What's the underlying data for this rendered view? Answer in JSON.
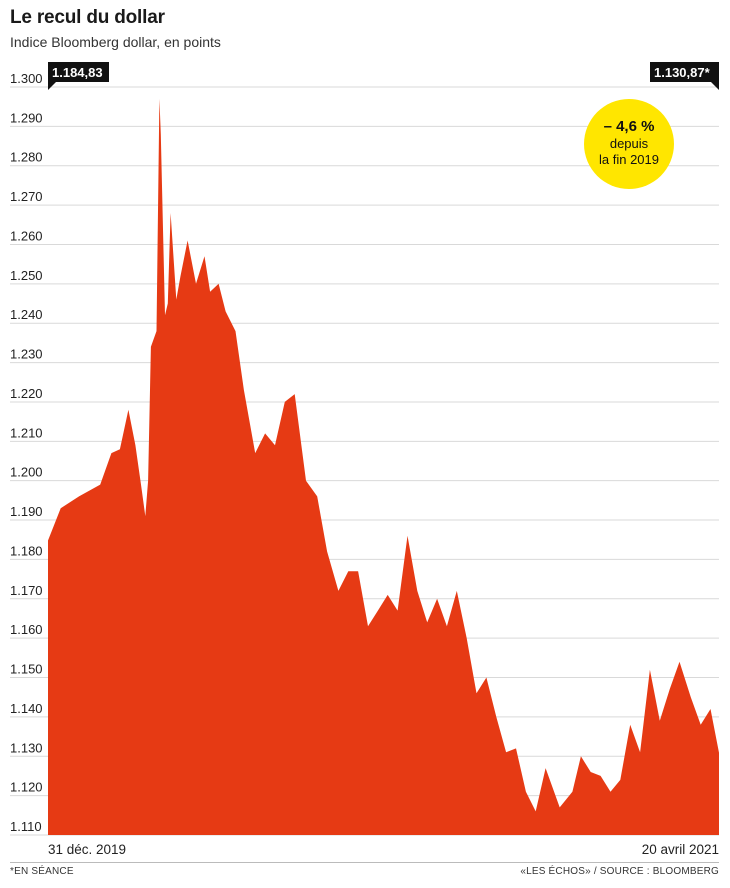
{
  "header": {
    "title": "Le recul du dollar",
    "subtitle": "Indice Bloomberg dollar, en points"
  },
  "callouts": {
    "start_value": "1.184,83",
    "end_value": "1.130,87*"
  },
  "badge": {
    "change": "– 4,6 %",
    "line1": "depuis",
    "line2": "la fin 2019",
    "color": "#ffe600"
  },
  "footer": {
    "footnote": "*EN SÉANCE",
    "source": "«LES ÉCHOS» / SOURCE : BLOOMBERG"
  },
  "colors": {
    "area": "#e63a14",
    "callout_bg": "#111111",
    "grid": "#d9d9d9"
  },
  "chart_data": {
    "type": "area",
    "ylim": [
      1110,
      1300
    ],
    "yticks": [
      1110,
      1120,
      1130,
      1140,
      1150,
      1160,
      1170,
      1180,
      1190,
      1200,
      1210,
      1220,
      1230,
      1240,
      1250,
      1260,
      1270,
      1280,
      1290,
      1300
    ],
    "ytick_labels": [
      "1.110",
      "1.120",
      "1.130",
      "1.140",
      "1.150",
      "1.160",
      "1.170",
      "1.180",
      "1.190",
      "1.200",
      "1.210",
      "1.220",
      "1.230",
      "1.240",
      "1.250",
      "1.260",
      "1.270",
      "1.280",
      "1.290",
      "1.300"
    ],
    "x_start_label": "31 déc. 2019",
    "x_end_label": "20 avril 2021",
    "x": [
      "2019-12-31",
      "2020-01-09",
      "2020-01-22",
      "2020-02-06",
      "2020-02-14",
      "2020-02-20",
      "2020-02-26",
      "2020-03-02",
      "2020-03-06",
      "2020-03-09",
      "2020-03-11",
      "2020-03-13",
      "2020-03-17",
      "2020-03-19",
      "2020-03-20",
      "2020-03-23",
      "2020-03-25",
      "2020-03-27",
      "2020-03-31",
      "2020-04-03",
      "2020-04-08",
      "2020-04-14",
      "2020-04-20",
      "2020-04-24",
      "2020-04-30",
      "2020-05-05",
      "2020-05-12",
      "2020-05-18",
      "2020-05-26",
      "2020-06-02",
      "2020-06-09",
      "2020-06-16",
      "2020-06-23",
      "2020-07-01",
      "2020-07-09",
      "2020-07-16",
      "2020-07-24",
      "2020-07-31",
      "2020-08-07",
      "2020-08-14",
      "2020-08-21",
      "2020-08-28",
      "2020-09-04",
      "2020-09-11",
      "2020-09-18",
      "2020-09-25",
      "2020-10-02",
      "2020-10-09",
      "2020-10-16",
      "2020-10-23",
      "2020-10-30",
      "2020-11-06",
      "2020-11-13",
      "2020-11-20",
      "2020-11-27",
      "2020-12-04",
      "2020-12-11",
      "2020-12-18",
      "2020-12-28",
      "2021-01-06",
      "2021-01-12",
      "2021-01-19",
      "2021-01-26",
      "2021-02-02",
      "2021-02-09",
      "2021-02-16",
      "2021-02-23",
      "2021-03-02",
      "2021-03-09",
      "2021-03-16",
      "2021-03-23",
      "2021-03-31",
      "2021-04-07",
      "2021-04-14",
      "2021-04-20"
    ],
    "values": [
      1184.8,
      1193,
      1196,
      1199,
      1207,
      1208,
      1218,
      1209,
      1199,
      1191,
      1200,
      1234,
      1238,
      1297,
      1288,
      1242,
      1245,
      1268,
      1246,
      1252,
      1261,
      1250,
      1257,
      1248,
      1250,
      1243,
      1238,
      1223,
      1207,
      1212,
      1209,
      1220,
      1222,
      1200,
      1196,
      1182,
      1172,
      1177,
      1177,
      1163,
      1167,
      1171,
      1167,
      1186,
      1172,
      1164,
      1170,
      1163,
      1172,
      1160,
      1146,
      1150,
      1140,
      1131,
      1132,
      1121,
      1116,
      1127,
      1117,
      1121,
      1130,
      1126,
      1125,
      1121,
      1124,
      1138,
      1131,
      1152,
      1139,
      1147,
      1154,
      1145,
      1138,
      1142,
      1130.9
    ]
  }
}
